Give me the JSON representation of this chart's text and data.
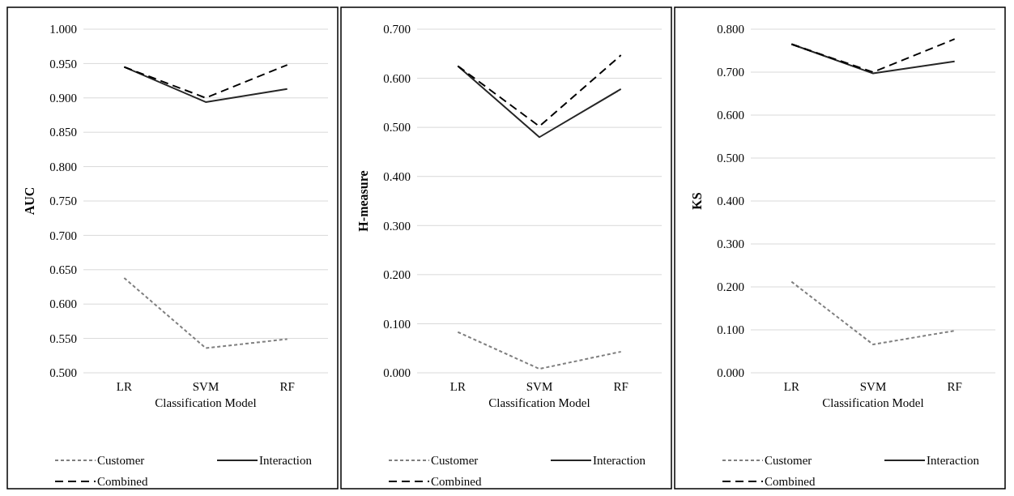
{
  "chart_data": [
    {
      "type": "line",
      "ylabel": "AUC",
      "xlabel": "Classification Model",
      "categories": [
        "LR",
        "SVM",
        "RF"
      ],
      "ylim": [
        0.5,
        1.0
      ],
      "yticks": [
        {
          "value": 0.5,
          "label": "0.500"
        },
        {
          "value": 0.55,
          "label": "0.550"
        },
        {
          "value": 0.6,
          "label": "0.600"
        },
        {
          "value": 0.65,
          "label": "0.650"
        },
        {
          "value": 0.7,
          "label": "0.700"
        },
        {
          "value": 0.75,
          "label": "0.750"
        },
        {
          "value": 0.8,
          "label": "0.800"
        },
        {
          "value": 0.85,
          "label": "0.850"
        },
        {
          "value": 0.9,
          "label": "0.900"
        },
        {
          "value": 0.95,
          "label": "0.950"
        },
        {
          "value": 1.0,
          "label": "1.000"
        }
      ],
      "grid": "y",
      "legend": "bottom",
      "marker": "none",
      "series": [
        {
          "name": "Customer",
          "color": "#7f7f7f",
          "line_style": "dotted",
          "values": [
            0.638,
            0.536,
            0.549
          ]
        },
        {
          "name": "Interaction",
          "color": "#262626",
          "line_style": "solid",
          "values": [
            0.945,
            0.894,
            0.913
          ]
        },
        {
          "name": "Combined",
          "color": "#000000",
          "line_style": "dashed",
          "values": [
            0.945,
            0.9,
            0.948
          ]
        }
      ]
    },
    {
      "type": "line",
      "ylabel": "H-measure",
      "xlabel": "Classification Model",
      "categories": [
        "LR",
        "SVM",
        "RF"
      ],
      "ylim": [
        0,
        0.7
      ],
      "yticks": [
        {
          "value": 0,
          "label": "0.000"
        },
        {
          "value": 0.1,
          "label": "0.100"
        },
        {
          "value": 0.2,
          "label": "0.200"
        },
        {
          "value": 0.3,
          "label": "0.300"
        },
        {
          "value": 0.4,
          "label": "0.400"
        },
        {
          "value": 0.5,
          "label": "0.500"
        },
        {
          "value": 0.6,
          "label": "0.600"
        },
        {
          "value": 0.7,
          "label": "0.700"
        }
      ],
      "grid": "y",
      "legend": "bottom",
      "marker": "none",
      "series": [
        {
          "name": "Customer",
          "color": "#7f7f7f",
          "line_style": "dotted",
          "values": [
            0.083,
            0.008,
            0.043
          ]
        },
        {
          "name": "Interaction",
          "color": "#262626",
          "line_style": "solid",
          "values": [
            0.625,
            0.48,
            0.578
          ]
        },
        {
          "name": "Combined",
          "color": "#000000",
          "line_style": "dashed",
          "values": [
            0.625,
            0.502,
            0.647
          ]
        }
      ]
    },
    {
      "type": "line",
      "ylabel": "KS",
      "xlabel": "Classification Model",
      "categories": [
        "LR",
        "SVM",
        "RF"
      ],
      "ylim": [
        0,
        0.8
      ],
      "yticks": [
        {
          "value": 0,
          "label": "0.000"
        },
        {
          "value": 0.1,
          "label": "0.100"
        },
        {
          "value": 0.2,
          "label": "0.200"
        },
        {
          "value": 0.3,
          "label": "0.300"
        },
        {
          "value": 0.4,
          "label": "0.400"
        },
        {
          "value": 0.5,
          "label": "0.500"
        },
        {
          "value": 0.6,
          "label": "0.600"
        },
        {
          "value": 0.7,
          "label": "0.700"
        },
        {
          "value": 0.8,
          "label": "0.800"
        }
      ],
      "grid": "y",
      "legend": "bottom",
      "marker": "none",
      "series": [
        {
          "name": "Customer",
          "color": "#7f7f7f",
          "line_style": "dotted",
          "values": [
            0.212,
            0.066,
            0.098
          ]
        },
        {
          "name": "Interaction",
          "color": "#262626",
          "line_style": "solid",
          "values": [
            0.765,
            0.697,
            0.725
          ]
        },
        {
          "name": "Combined",
          "color": "#000000",
          "line_style": "dashed",
          "values": [
            0.765,
            0.7,
            0.777
          ]
        }
      ]
    }
  ]
}
